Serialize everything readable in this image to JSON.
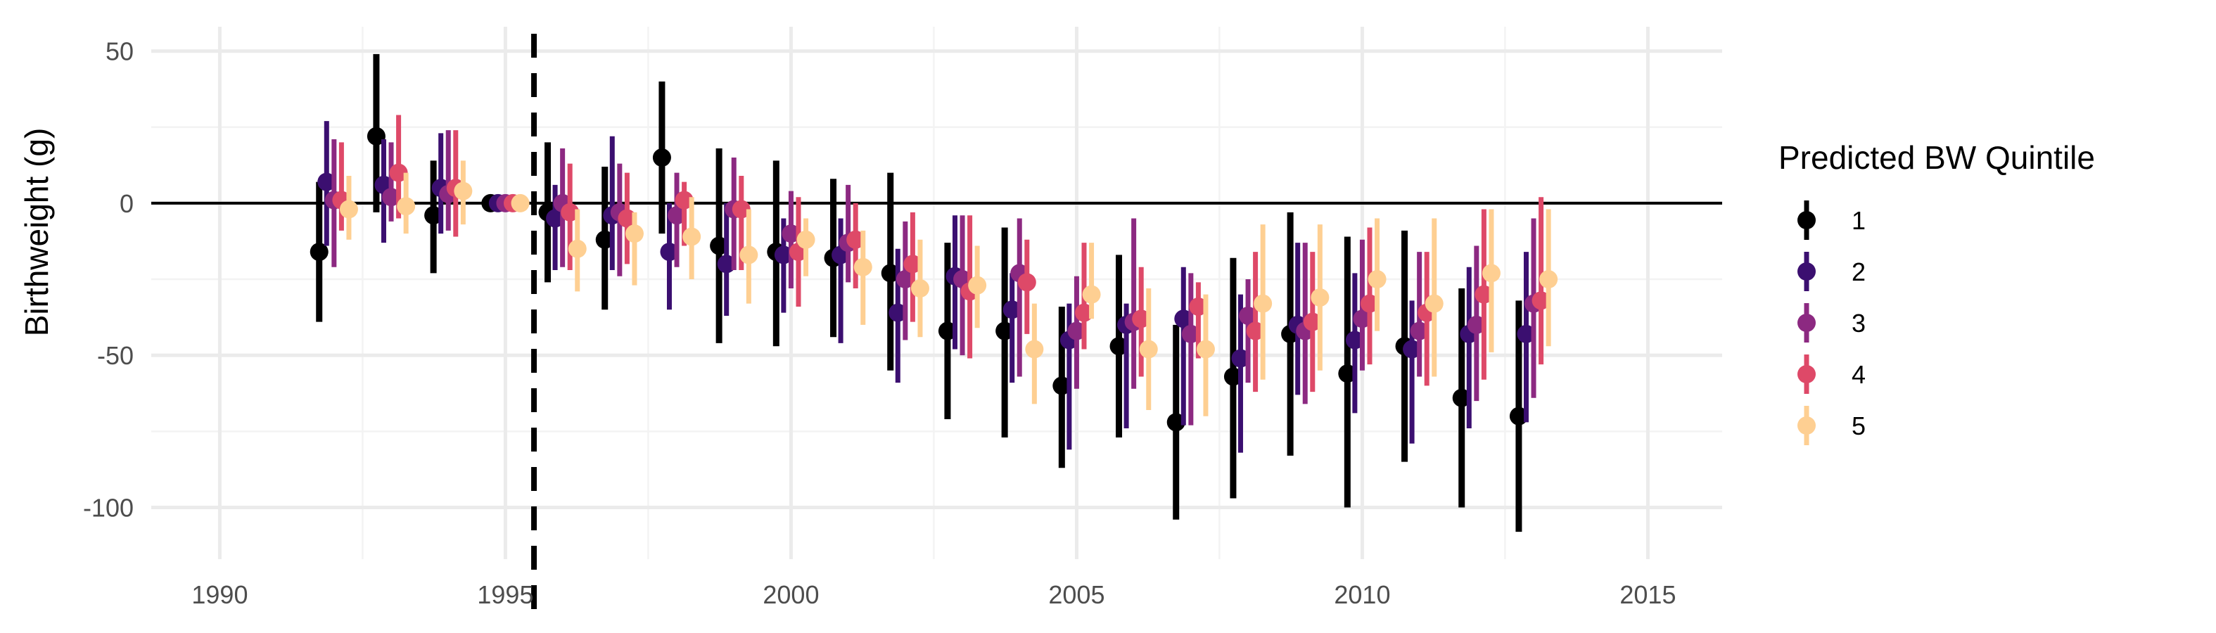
{
  "chart_data": {
    "type": "scatter",
    "subtype": "point-range (estimate with error bars), dodged by group",
    "title": "",
    "xlabel": "",
    "ylabel": "Birthweight (g)",
    "xlim": [
      1988.8,
      2016.3
    ],
    "ylim": [
      -117,
      58
    ],
    "x_ticks": [
      "1990",
      "1995",
      "2000",
      "2005",
      "2010",
      "2015"
    ],
    "y_ticks": [
      "50",
      "0",
      "-50",
      "-100"
    ],
    "x_tick_values": [
      1990,
      1995,
      2000,
      2005,
      2010,
      2015
    ],
    "y_tick_values": [
      50,
      0,
      -50,
      -100
    ],
    "reference_hline": 0,
    "reference_vline": {
      "x": 1995.5,
      "style": "dashed"
    },
    "grid": true,
    "legend": {
      "title": "Predicted BW Quintile",
      "position": "right"
    },
    "years": [
      1992,
      1993,
      1994,
      1995,
      1996,
      1997,
      1998,
      1999,
      2000,
      2001,
      2002,
      2003,
      2004,
      2005,
      2006,
      2007,
      2008,
      2009,
      2010,
      2011,
      2012,
      2013
    ],
    "series": [
      {
        "name": "1",
        "color": "#000000",
        "estimate": [
          -16,
          22,
          -4,
          0,
          -3,
          -12,
          15,
          -14,
          -16,
          -18,
          -23,
          -42,
          -42,
          -60,
          -47,
          -72,
          -57,
          -43,
          -56,
          -47,
          -64,
          -70
        ],
        "lower": [
          -39,
          -3,
          -23,
          0,
          -26,
          -35,
          -10,
          -46,
          -47,
          -44,
          -55,
          -71,
          -77,
          -87,
          -77,
          -104,
          -97,
          -83,
          -100,
          -85,
          -100,
          -108
        ],
        "upper": [
          7,
          49,
          14,
          0,
          20,
          12,
          40,
          18,
          14,
          8,
          10,
          -13,
          -8,
          -34,
          -17,
          -40,
          -18,
          -3,
          -11,
          -9,
          -28,
          -32
        ]
      },
      {
        "name": "2",
        "color": "#3b0f70",
        "estimate": [
          7,
          6,
          5,
          0,
          -5,
          -4,
          -16,
          -20,
          -17,
          -17,
          -36,
          -24,
          -35,
          -45,
          -40,
          -38,
          -51,
          -40,
          -45,
          -48,
          -43,
          -43
        ],
        "lower": [
          -14,
          -13,
          -10,
          0,
          -22,
          -22,
          -35,
          -37,
          -36,
          -46,
          -59,
          -48,
          -59,
          -81,
          -74,
          -73,
          -82,
          -63,
          -69,
          -79,
          -74,
          -72
        ],
        "upper": [
          27,
          21,
          23,
          0,
          6,
          22,
          0,
          0,
          -5,
          -5,
          -15,
          -4,
          -23,
          -33,
          -33,
          -21,
          -30,
          -13,
          -23,
          -32,
          -21,
          -16
        ]
      },
      {
        "name": "3",
        "color": "#8c2981",
        "estimate": [
          1,
          2,
          3,
          0,
          0,
          -3,
          -4,
          -2,
          -10,
          -13,
          -25,
          -25,
          -23,
          -42,
          -39,
          -43,
          -37,
          -42,
          -38,
          -42,
          -40,
          -33
        ],
        "lower": [
          -21,
          -6,
          -9,
          0,
          -21,
          -24,
          -21,
          -22,
          -28,
          -26,
          -45,
          -50,
          -57,
          -61,
          -61,
          -73,
          -59,
          -66,
          -55,
          -57,
          -65,
          -64
        ],
        "upper": [
          21,
          20,
          24,
          0,
          18,
          13,
          10,
          15,
          4,
          6,
          -6,
          -4,
          -5,
          -24,
          -5,
          -23,
          -25,
          -13,
          -12,
          -16,
          -14,
          -5
        ]
      },
      {
        "name": "4",
        "color": "#de4968",
        "estimate": [
          1,
          10,
          5,
          0,
          -3,
          -5,
          1,
          -2,
          -16,
          -12,
          -20,
          -29,
          -26,
          -36,
          -38,
          -34,
          -42,
          -39,
          -33,
          -36,
          -30,
          -32
        ],
        "lower": [
          -9,
          -5,
          -11,
          0,
          -22,
          -20,
          -14,
          -22,
          -34,
          -28,
          -39,
          -51,
          -43,
          -48,
          -57,
          -51,
          -62,
          -62,
          -53,
          -60,
          -58,
          -53
        ],
        "upper": [
          20,
          29,
          24,
          0,
          13,
          10,
          7,
          9,
          2,
          0,
          -3,
          -4,
          -12,
          -13,
          -21,
          -26,
          -16,
          -16,
          -8,
          -16,
          -2,
          2
        ]
      },
      {
        "name": "5",
        "color": "#fecf92",
        "estimate": [
          -2,
          -1,
          4,
          0,
          -15,
          -10,
          -11,
          -17,
          -12,
          -21,
          -28,
          -27,
          -48,
          -30,
          -48,
          -48,
          -33,
          -31,
          -25,
          -33,
          -23,
          -25
        ],
        "lower": [
          -12,
          -10,
          -7,
          0,
          -29,
          -27,
          -25,
          -33,
          -24,
          -40,
          -44,
          -41,
          -66,
          -38,
          -68,
          -70,
          -58,
          -55,
          -42,
          -57,
          -49,
          -47
        ],
        "upper": [
          9,
          10,
          14,
          0,
          -2,
          -3,
          2,
          -2,
          -5,
          -9,
          -12,
          -14,
          -33,
          -13,
          -28,
          -30,
          -7,
          -7,
          -5,
          -5,
          -2,
          -2
        ]
      }
    ]
  }
}
